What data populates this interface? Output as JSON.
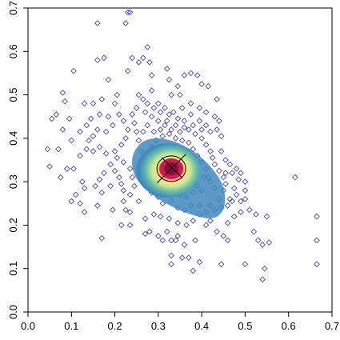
{
  "chart_data": {
    "type": "scatter",
    "title": "",
    "xlabel": "",
    "ylabel": "",
    "xlim": [
      0.0,
      0.7
    ],
    "ylim": [
      0.0,
      0.7
    ],
    "xticks": [
      "0.0",
      "0.1",
      "0.2",
      "0.3",
      "0.4",
      "0.5",
      "0.6",
      "0.7"
    ],
    "yticks": [
      "0.0",
      "0.1",
      "0.2",
      "0.3",
      "0.4",
      "0.5",
      "0.6",
      "0.7"
    ],
    "grid": false,
    "marker": "open-diamond",
    "point_color": "#4b4ba0",
    "density_palette": [
      "#3f88bd",
      "#6bbfa6",
      "#c8e69a",
      "#fbe08a",
      "#f18a52",
      "#c61f4f",
      "#8c0b3d"
    ],
    "density_center": [
      0.33,
      0.33
    ],
    "cross_color": "#000000",
    "points": [
      [
        0.16,
        0.665
      ],
      [
        0.225,
        0.665
      ],
      [
        0.23,
        0.69
      ],
      [
        0.235,
        0.69
      ],
      [
        0.105,
        0.555
      ],
      [
        0.16,
        0.58
      ],
      [
        0.175,
        0.585
      ],
      [
        0.24,
        0.585
      ],
      [
        0.255,
        0.575
      ],
      [
        0.265,
        0.585
      ],
      [
        0.275,
        0.61
      ],
      [
        0.28,
        0.575
      ],
      [
        0.23,
        0.555
      ],
      [
        0.185,
        0.535
      ],
      [
        0.285,
        0.545
      ],
      [
        0.32,
        0.56
      ],
      [
        0.325,
        0.535
      ],
      [
        0.345,
        0.52
      ],
      [
        0.36,
        0.545
      ],
      [
        0.375,
        0.55
      ],
      [
        0.39,
        0.545
      ],
      [
        0.4,
        0.525
      ],
      [
        0.415,
        0.52
      ],
      [
        0.435,
        0.49
      ],
      [
        0.44,
        0.44
      ],
      [
        0.445,
        0.405
      ],
      [
        0.33,
        0.5
      ],
      [
        0.35,
        0.5
      ],
      [
        0.255,
        0.5
      ],
      [
        0.205,
        0.5
      ],
      [
        0.2,
        0.48
      ],
      [
        0.17,
        0.49
      ],
      [
        0.15,
        0.48
      ],
      [
        0.13,
        0.48
      ],
      [
        0.08,
        0.505
      ],
      [
        0.085,
        0.485
      ],
      [
        0.095,
        0.445
      ],
      [
        0.065,
        0.455
      ],
      [
        0.055,
        0.445
      ],
      [
        0.08,
        0.42
      ],
      [
        0.07,
        0.375
      ],
      [
        0.045,
        0.375
      ],
      [
        0.05,
        0.335
      ],
      [
        0.1,
        0.395
      ],
      [
        0.12,
        0.36
      ],
      [
        0.105,
        0.33
      ],
      [
        0.09,
        0.33
      ],
      [
        0.075,
        0.31
      ],
      [
        0.125,
        0.3
      ],
      [
        0.13,
        0.285
      ],
      [
        0.11,
        0.27
      ],
      [
        0.1,
        0.255
      ],
      [
        0.12,
        0.25
      ],
      [
        0.13,
        0.23
      ],
      [
        0.16,
        0.245
      ],
      [
        0.195,
        0.235
      ],
      [
        0.22,
        0.255
      ],
      [
        0.225,
        0.235
      ],
      [
        0.235,
        0.23
      ],
      [
        0.255,
        0.255
      ],
      [
        0.215,
        0.2
      ],
      [
        0.235,
        0.2
      ],
      [
        0.17,
        0.17
      ],
      [
        0.27,
        0.18
      ],
      [
        0.28,
        0.185
      ],
      [
        0.3,
        0.175
      ],
      [
        0.31,
        0.165
      ],
      [
        0.32,
        0.185
      ],
      [
        0.33,
        0.165
      ],
      [
        0.34,
        0.165
      ],
      [
        0.345,
        0.175
      ],
      [
        0.36,
        0.155
      ],
      [
        0.385,
        0.165
      ],
      [
        0.33,
        0.13
      ],
      [
        0.33,
        0.11
      ],
      [
        0.355,
        0.125
      ],
      [
        0.37,
        0.125
      ],
      [
        0.395,
        0.115
      ],
      [
        0.38,
        0.095
      ],
      [
        0.41,
        0.2
      ],
      [
        0.42,
        0.21
      ],
      [
        0.435,
        0.185
      ],
      [
        0.45,
        0.175
      ],
      [
        0.46,
        0.165
      ],
      [
        0.46,
        0.205
      ],
      [
        0.475,
        0.22
      ],
      [
        0.49,
        0.23
      ],
      [
        0.49,
        0.255
      ],
      [
        0.5,
        0.26
      ],
      [
        0.51,
        0.235
      ],
      [
        0.525,
        0.225
      ],
      [
        0.52,
        0.185
      ],
      [
        0.53,
        0.165
      ],
      [
        0.54,
        0.155
      ],
      [
        0.55,
        0.22
      ],
      [
        0.555,
        0.16
      ],
      [
        0.445,
        0.11
      ],
      [
        0.5,
        0.11
      ],
      [
        0.545,
        0.1
      ],
      [
        0.54,
        0.075
      ],
      [
        0.615,
        0.31
      ],
      [
        0.665,
        0.22
      ],
      [
        0.665,
        0.165
      ],
      [
        0.665,
        0.11
      ],
      [
        0.48,
        0.33
      ],
      [
        0.455,
        0.32
      ],
      [
        0.485,
        0.305
      ],
      [
        0.5,
        0.28
      ],
      [
        0.475,
        0.285
      ],
      [
        0.465,
        0.26
      ],
      [
        0.44,
        0.26
      ],
      [
        0.42,
        0.245
      ],
      [
        0.395,
        0.245
      ],
      [
        0.375,
        0.245
      ],
      [
        0.36,
        0.235
      ],
      [
        0.345,
        0.24
      ],
      [
        0.33,
        0.255
      ],
      [
        0.31,
        0.25
      ],
      [
        0.3,
        0.265
      ],
      [
        0.285,
        0.275
      ],
      [
        0.275,
        0.3
      ],
      [
        0.27,
        0.325
      ],
      [
        0.265,
        0.345
      ],
      [
        0.26,
        0.37
      ],
      [
        0.255,
        0.395
      ],
      [
        0.25,
        0.415
      ],
      [
        0.245,
        0.435
      ],
      [
        0.24,
        0.455
      ],
      [
        0.25,
        0.47
      ],
      [
        0.27,
        0.46
      ],
      [
        0.285,
        0.45
      ],
      [
        0.3,
        0.44
      ],
      [
        0.315,
        0.43
      ],
      [
        0.33,
        0.42
      ],
      [
        0.35,
        0.415
      ],
      [
        0.37,
        0.42
      ],
      [
        0.385,
        0.41
      ],
      [
        0.4,
        0.4
      ],
      [
        0.41,
        0.385
      ],
      [
        0.42,
        0.37
      ],
      [
        0.425,
        0.355
      ],
      [
        0.43,
        0.34
      ],
      [
        0.44,
        0.325
      ],
      [
        0.45,
        0.31
      ],
      [
        0.455,
        0.295
      ],
      [
        0.45,
        0.28
      ],
      [
        0.43,
        0.285
      ],
      [
        0.42,
        0.3
      ],
      [
        0.405,
        0.31
      ],
      [
        0.39,
        0.29
      ],
      [
        0.38,
        0.275
      ],
      [
        0.365,
        0.265
      ],
      [
        0.35,
        0.27
      ],
      [
        0.335,
        0.275
      ],
      [
        0.32,
        0.28
      ],
      [
        0.305,
        0.29
      ],
      [
        0.295,
        0.305
      ],
      [
        0.29,
        0.32
      ],
      [
        0.285,
        0.34
      ],
      [
        0.28,
        0.36
      ],
      [
        0.285,
        0.38
      ],
      [
        0.295,
        0.395
      ],
      [
        0.31,
        0.405
      ],
      [
        0.325,
        0.41
      ],
      [
        0.34,
        0.4
      ],
      [
        0.355,
        0.395
      ],
      [
        0.37,
        0.39
      ],
      [
        0.38,
        0.375
      ],
      [
        0.39,
        0.36
      ],
      [
        0.4,
        0.345
      ],
      [
        0.41,
        0.33
      ],
      [
        0.415,
        0.31
      ],
      [
        0.4,
        0.28
      ],
      [
        0.195,
        0.43
      ],
      [
        0.18,
        0.415
      ],
      [
        0.16,
        0.42
      ],
      [
        0.15,
        0.405
      ],
      [
        0.14,
        0.395
      ],
      [
        0.135,
        0.375
      ],
      [
        0.15,
        0.37
      ],
      [
        0.165,
        0.38
      ],
      [
        0.18,
        0.365
      ],
      [
        0.2,
        0.37
      ],
      [
        0.215,
        0.385
      ],
      [
        0.225,
        0.4
      ],
      [
        0.23,
        0.42
      ],
      [
        0.22,
        0.44
      ],
      [
        0.21,
        0.455
      ],
      [
        0.185,
        0.45
      ],
      [
        0.165,
        0.455
      ],
      [
        0.145,
        0.445
      ],
      [
        0.135,
        0.43
      ],
      [
        0.12,
        0.415
      ],
      [
        0.19,
        0.34
      ],
      [
        0.2,
        0.325
      ],
      [
        0.21,
        0.31
      ],
      [
        0.215,
        0.295
      ],
      [
        0.22,
        0.28
      ],
      [
        0.235,
        0.27
      ],
      [
        0.245,
        0.29
      ],
      [
        0.24,
        0.31
      ],
      [
        0.235,
        0.33
      ],
      [
        0.22,
        0.345
      ],
      [
        0.205,
        0.355
      ],
      [
        0.175,
        0.32
      ],
      [
        0.165,
        0.305
      ],
      [
        0.155,
        0.29
      ],
      [
        0.17,
        0.275
      ],
      [
        0.19,
        0.29
      ],
      [
        0.27,
        0.215
      ],
      [
        0.29,
        0.225
      ],
      [
        0.305,
        0.22
      ],
      [
        0.325,
        0.215
      ],
      [
        0.345,
        0.205
      ],
      [
        0.365,
        0.2
      ],
      [
        0.38,
        0.21
      ],
      [
        0.395,
        0.225
      ],
      [
        0.41,
        0.23
      ],
      [
        0.43,
        0.235
      ],
      [
        0.445,
        0.24
      ],
      [
        0.46,
        0.245
      ],
      [
        0.47,
        0.255
      ],
      [
        0.48,
        0.27
      ],
      [
        0.265,
        0.49
      ],
      [
        0.285,
        0.51
      ],
      [
        0.3,
        0.48
      ],
      [
        0.315,
        0.47
      ],
      [
        0.335,
        0.46
      ],
      [
        0.355,
        0.47
      ],
      [
        0.375,
        0.48
      ],
      [
        0.395,
        0.47
      ],
      [
        0.41,
        0.46
      ],
      [
        0.43,
        0.45
      ],
      [
        0.41,
        0.43
      ],
      [
        0.395,
        0.44
      ],
      [
        0.375,
        0.455
      ],
      [
        0.36,
        0.44
      ],
      [
        0.345,
        0.445
      ],
      [
        0.325,
        0.455
      ],
      [
        0.305,
        0.46
      ],
      [
        0.29,
        0.47
      ],
      [
        0.275,
        0.48
      ],
      [
        0.275,
        0.43
      ],
      [
        0.265,
        0.415
      ],
      [
        0.29,
        0.415
      ],
      [
        0.305,
        0.42
      ],
      [
        0.32,
        0.44
      ],
      [
        0.34,
        0.43
      ],
      [
        0.36,
        0.425
      ],
      [
        0.38,
        0.43
      ],
      [
        0.4,
        0.42
      ],
      [
        0.42,
        0.415
      ],
      [
        0.435,
        0.42
      ],
      [
        0.445,
        0.37
      ],
      [
        0.455,
        0.35
      ],
      [
        0.465,
        0.34
      ],
      [
        0.47,
        0.32
      ],
      [
        0.49,
        0.32
      ],
      [
        0.5,
        0.3
      ]
    ]
  }
}
